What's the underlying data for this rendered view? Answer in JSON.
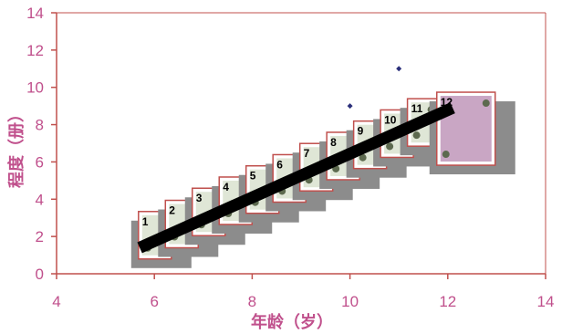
{
  "chart_data": {
    "type": "scatter",
    "title": "",
    "xlabel": "年龄（岁）",
    "ylabel": "程度（册）",
    "xlim": [
      4,
      14
    ],
    "ylim": [
      0,
      14
    ],
    "x_ticks": [
      "4",
      "6",
      "8",
      "10",
      "12",
      "14"
    ],
    "y_ticks": [
      "0",
      "2",
      "4",
      "6",
      "8",
      "10",
      "12",
      "14"
    ],
    "grid": false,
    "legend": "none",
    "points": [
      {
        "x": 10,
        "y": 9
      },
      {
        "x": 11,
        "y": 11
      }
    ],
    "trendline": {
      "x": [
        5.7,
        12.1
      ],
      "y": [
        1.4,
        8.9
      ]
    },
    "books": [
      {
        "label": "1",
        "x": 5.75,
        "y": 2.85
      },
      {
        "label": "2",
        "x": 6.3,
        "y": 3.45
      },
      {
        "label": "3",
        "x": 6.85,
        "y": 4.1
      },
      {
        "label": "4",
        "x": 7.4,
        "y": 4.7
      },
      {
        "label": "5",
        "x": 7.95,
        "y": 5.3
      },
      {
        "label": "6",
        "x": 8.5,
        "y": 5.9
      },
      {
        "label": "7",
        "x": 9.05,
        "y": 6.5
      },
      {
        "label": "8",
        "x": 9.6,
        "y": 7.1
      },
      {
        "label": "9",
        "x": 10.15,
        "y": 7.7
      },
      {
        "label": "10",
        "x": 10.7,
        "y": 8.3
      },
      {
        "label": "11",
        "x": 11.25,
        "y": 8.9
      },
      {
        "label": "12",
        "x": 11.85,
        "y": 9.25
      }
    ],
    "colors": {
      "axis": "#c0504d",
      "tick_text": "#c0508c",
      "axis_title": "#c0508c",
      "points": "#2b2f7a",
      "trendline": "#000000",
      "book_shadow": "#8c8c8c",
      "book_frame": "#c0504d"
    }
  }
}
